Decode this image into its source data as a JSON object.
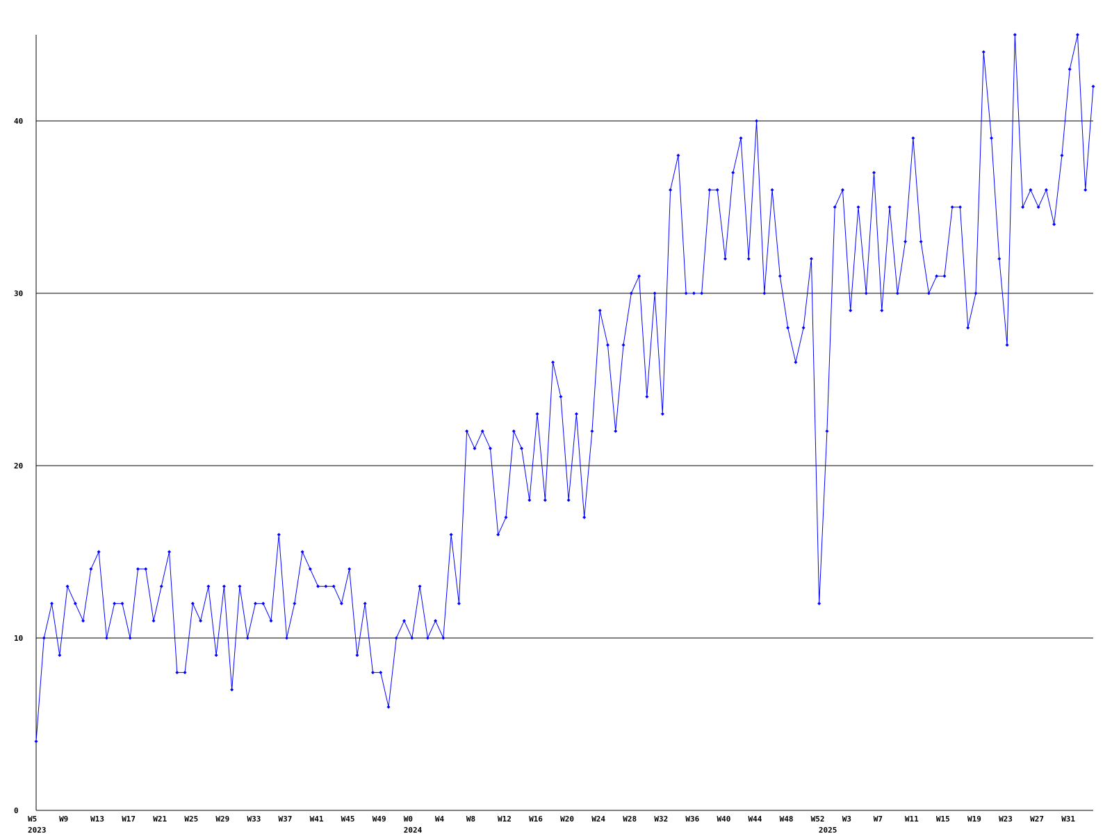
{
  "chart_data": {
    "type": "line",
    "categories": [
      "W5",
      null,
      null,
      null,
      "W9",
      null,
      null,
      null,
      "W13",
      null,
      null,
      null,
      "W17",
      null,
      null,
      null,
      "W21",
      null,
      null,
      null,
      "W25",
      null,
      null,
      null,
      "W29",
      null,
      null,
      null,
      "W33",
      null,
      null,
      null,
      "W37",
      null,
      null,
      null,
      "W41",
      null,
      null,
      null,
      "W45",
      null,
      null,
      null,
      "W49",
      null,
      null,
      null,
      "W0",
      null,
      null,
      null,
      "W4",
      null,
      null,
      null,
      "W8",
      null,
      null,
      null,
      "W12",
      null,
      null,
      null,
      "W16",
      null,
      null,
      null,
      "W20",
      null,
      null,
      null,
      "W24",
      null,
      null,
      null,
      "W28",
      null,
      null,
      null,
      "W32",
      null,
      null,
      null,
      "W36",
      null,
      null,
      null,
      "W40",
      null,
      null,
      null,
      "W44",
      null,
      null,
      null,
      "W48",
      null,
      null,
      null,
      "W52",
      null,
      null,
      null,
      "W3",
      null,
      null,
      null,
      "W7",
      null,
      null,
      null,
      "W11",
      null,
      null,
      null,
      "W15",
      null,
      null,
      null,
      "W19",
      null,
      null,
      null,
      "W23",
      null,
      null,
      null,
      "W27",
      null,
      null,
      null,
      "W31",
      null,
      null,
      null
    ],
    "category_years": [
      "2023",
      null,
      null,
      null,
      null,
      null,
      null,
      null,
      null,
      null,
      null,
      null,
      null,
      null,
      null,
      null,
      null,
      null,
      null,
      null,
      null,
      null,
      null,
      null,
      null,
      null,
      null,
      null,
      null,
      null,
      null,
      null,
      null,
      null,
      null,
      null,
      null,
      null,
      null,
      null,
      null,
      null,
      null,
      null,
      null,
      null,
      null,
      null,
      "2024",
      null,
      null,
      null,
      null,
      null,
      null,
      null,
      null,
      null,
      null,
      null,
      null,
      null,
      null,
      null,
      null,
      null,
      null,
      null,
      null,
      null,
      null,
      null,
      null,
      null,
      null,
      null,
      null,
      null,
      null,
      null,
      null,
      null,
      null,
      null,
      null,
      null,
      null,
      null,
      null,
      null,
      null,
      null,
      null,
      null,
      null,
      null,
      null,
      null,
      null,
      null,
      null,
      "2025",
      null,
      null,
      null,
      null,
      null,
      null,
      null,
      null,
      null,
      null,
      null,
      null,
      null,
      null,
      null,
      null,
      null,
      null,
      null,
      null,
      null,
      null,
      null,
      null,
      null,
      null,
      null,
      null,
      null,
      null,
      null,
      null,
      null,
      null
    ],
    "series": [
      {
        "color": "#0000ff",
        "values": [
          4,
          10,
          12,
          9,
          13,
          12,
          11,
          14,
          15,
          10,
          12,
          12,
          10,
          14,
          14,
          11,
          13,
          15,
          8,
          8,
          12,
          11,
          13,
          9,
          13,
          7,
          13,
          10,
          12,
          12,
          11,
          16,
          10,
          12,
          15,
          14,
          13,
          13,
          13,
          12,
          14,
          9,
          12,
          8,
          8,
          6,
          10,
          11,
          10,
          13,
          10,
          11,
          10,
          16,
          12,
          22,
          21,
          22,
          21,
          16,
          17,
          22,
          21,
          18,
          23,
          18,
          26,
          24,
          18,
          23,
          17,
          22,
          29,
          27,
          22,
          27,
          30,
          31,
          24,
          30,
          23,
          36,
          38,
          30,
          30,
          30,
          36,
          36,
          32,
          37,
          39,
          32,
          40,
          30,
          36,
          31,
          28,
          26,
          28,
          32,
          12,
          22,
          35,
          36,
          29,
          35,
          30,
          37,
          29,
          35,
          30,
          33,
          39,
          33,
          30,
          31,
          31,
          35,
          35,
          28,
          30,
          44,
          39,
          32,
          27,
          45,
          35,
          36,
          35,
          36,
          34,
          38,
          43,
          45,
          36,
          42
        ]
      }
    ],
    "ylim": [
      0,
      45
    ],
    "yticks": [
      0,
      10,
      20,
      30,
      40
    ],
    "grid": true
  }
}
